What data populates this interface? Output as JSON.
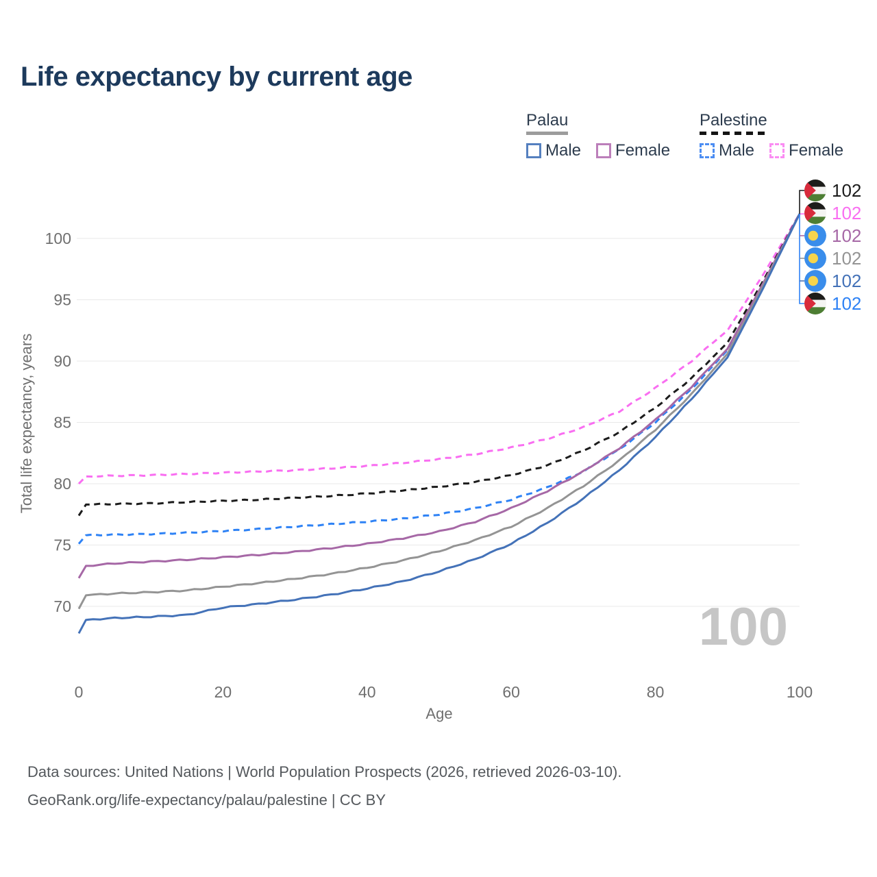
{
  "chart_data": {
    "type": "line",
    "title": "Life expectancy by current age",
    "xlabel": "Age",
    "ylabel": "Total life expectancy, years",
    "xticks": [
      0,
      20,
      40,
      60,
      80,
      100
    ],
    "yticks": [
      70,
      75,
      80,
      85,
      90,
      95,
      100
    ],
    "xlim": [
      0,
      100
    ],
    "ylim": [
      66.5,
      102.5
    ],
    "grid": "horizontal",
    "legend_position": "top-right",
    "watermark": "100",
    "x": [
      0,
      1,
      5,
      10,
      15,
      20,
      25,
      30,
      35,
      40,
      45,
      50,
      55,
      60,
      65,
      70,
      75,
      80,
      85,
      90,
      95,
      100
    ],
    "series": [
      {
        "id": "palestine-female",
        "name": "Palestine Female",
        "country": "Palestine",
        "sex": "Female",
        "color": "#f96ef1",
        "dashed": true,
        "flag": "palestine-flag-icon",
        "end_label": "102",
        "end_row": 1,
        "values": [
          80.0,
          80.6,
          80.65,
          80.7,
          80.8,
          80.9,
          81.0,
          81.1,
          81.25,
          81.45,
          81.7,
          82.0,
          82.4,
          82.95,
          83.65,
          84.6,
          85.9,
          87.8,
          90.0,
          92.5,
          97.1,
          102
        ]
      },
      {
        "id": "palestine-total",
        "name": "Palestine Total",
        "country": "Palestine",
        "sex": "Total",
        "color": "#1c1c1c",
        "dashed": true,
        "flag": "palestine-flag-icon",
        "end_label": "102",
        "end_row": 0,
        "values": [
          77.4,
          78.3,
          78.35,
          78.4,
          78.5,
          78.6,
          78.7,
          78.85,
          79.0,
          79.2,
          79.45,
          79.75,
          80.15,
          80.7,
          81.5,
          82.7,
          84.2,
          86.2,
          88.6,
          91.5,
          96.6,
          102
        ]
      },
      {
        "id": "palestine-male",
        "name": "Palestine Male",
        "country": "Palestine",
        "sex": "Male",
        "color": "#2e82f5",
        "dashed": true,
        "flag": "palestine-flag-icon",
        "end_label": "102",
        "end_row": 5,
        "values": [
          75.1,
          75.8,
          75.85,
          75.9,
          76.0,
          76.15,
          76.3,
          76.5,
          76.7,
          76.9,
          77.15,
          77.5,
          78.0,
          78.7,
          79.7,
          81.0,
          82.8,
          85.0,
          87.7,
          90.9,
          96.3,
          102
        ]
      },
      {
        "id": "palau-female",
        "name": "Palau Female",
        "country": "Palau",
        "sex": "Female",
        "color": "#a668a6",
        "dashed": false,
        "flag": "palau-flag-icon",
        "end_label": "102",
        "end_row": 2,
        "values": [
          72.3,
          73.3,
          73.5,
          73.65,
          73.8,
          74.0,
          74.2,
          74.45,
          74.75,
          75.1,
          75.55,
          76.1,
          76.9,
          78.0,
          79.4,
          81.0,
          82.9,
          85.2,
          87.9,
          91.0,
          96.4,
          102
        ]
      },
      {
        "id": "palau-total",
        "name": "Palau Total",
        "country": "Palau",
        "sex": "Total",
        "color": "#949494",
        "dashed": false,
        "flag": "palau-flag-icon",
        "end_label": "102",
        "end_row": 3,
        "values": [
          69.8,
          70.9,
          71.05,
          71.15,
          71.3,
          71.6,
          71.9,
          72.25,
          72.65,
          73.15,
          73.75,
          74.5,
          75.4,
          76.5,
          78.0,
          79.8,
          81.9,
          84.4,
          87.3,
          90.6,
          96.2,
          102
        ]
      },
      {
        "id": "palau-male",
        "name": "Palau Male",
        "country": "Palau",
        "sex": "Male",
        "color": "#4472b8",
        "dashed": false,
        "flag": "palau-flag-icon",
        "end_label": "102",
        "end_row": 4,
        "values": [
          67.8,
          68.9,
          69.05,
          69.15,
          69.3,
          69.9,
          70.2,
          70.55,
          70.95,
          71.45,
          72.05,
          72.85,
          73.85,
          75.1,
          76.8,
          78.8,
          81.1,
          83.8,
          86.9,
          90.3,
          96.0,
          102
        ]
      }
    ]
  },
  "legend": {
    "groups": [
      {
        "label": "Palau",
        "underline": "solid",
        "underline_color": "#9c9c9c",
        "items": [
          {
            "label": "Male",
            "color": "#5580bf",
            "dashed": false
          },
          {
            "label": "Female",
            "color": "#bc7fba",
            "dashed": false
          }
        ]
      },
      {
        "label": "Palestine",
        "underline": "dashed",
        "underline_color": "#141414",
        "items": [
          {
            "label": "Male",
            "color": "#4c8df2",
            "dashed": true
          },
          {
            "label": "Female",
            "color": "#fa8df3",
            "dashed": true
          }
        ]
      }
    ]
  },
  "flag_colors": {
    "palestine": {
      "black": "#1d1d1b",
      "white": "#f4f4f2",
      "green": "#4d7e33",
      "red": "#d82b3c"
    },
    "palau": {
      "blue": "#3a8deb",
      "yellow": "#f7d44c"
    }
  },
  "footer": {
    "line1": "Data sources: United Nations | World Population Prospects (2026, retrieved 2026-03-10).",
    "line2": "GeoRank.org/life-expectancy/palau/palestine | CC BY"
  }
}
